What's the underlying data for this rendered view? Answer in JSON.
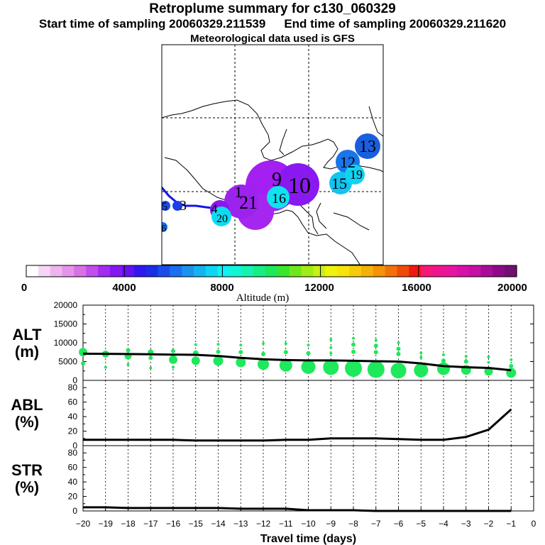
{
  "header": {
    "title": "Retroplume summary for c130_060329",
    "start_label": "Start time of sampling 20060329.211539",
    "end_label": "End time of sampling 20060329.211620",
    "met_label": "Meteorological data used is GFS"
  },
  "colorbar": {
    "title": "Altitude (m)",
    "ticks": [
      "0",
      "4000",
      "8000",
      "12000",
      "16000",
      "20000"
    ],
    "colors": [
      "#ffffff",
      "#f6d6f6",
      "#eeb4f0",
      "#e494ea",
      "#d870e6",
      "#c24cec",
      "#a22cf0",
      "#8418f2",
      "#6412f0",
      "#3018f0",
      "#1a2ee8",
      "#1a4cec",
      "#1a6ef0",
      "#1a92f0",
      "#14b4f0",
      "#0ed6f2",
      "#0ef2f2",
      "#12f4d8",
      "#16f2b0",
      "#16ee86",
      "#1ee85c",
      "#3ae62c",
      "#6ee81c",
      "#a0ec16",
      "#c8f012",
      "#eef20c",
      "#f6e40a",
      "#f6cc0a",
      "#f6b00a",
      "#f49208",
      "#f27208",
      "#f04a0a",
      "#f01810",
      "#f8187a",
      "#f01490",
      "#e814a0",
      "#d810a6",
      "#c410a4",
      "#a80c98",
      "#8c0a8a",
      "#701070"
    ]
  },
  "map": {
    "trajectory_color": "#1414e8",
    "labels": [
      {
        "text": "13",
        "color": "#1a5ee0"
      },
      {
        "text": "12",
        "color": "#1a76e8"
      },
      {
        "text": "19",
        "color": "#12d4f2"
      },
      {
        "text": "15",
        "color": "#12c4f0"
      },
      {
        "text": "10",
        "color": "#8a14f0"
      },
      {
        "text": "9",
        "color": "#9a1ef0"
      },
      {
        "text": "16",
        "color": "#10e2f2"
      },
      {
        "text": "21",
        "color": "#9e22ee"
      },
      {
        "text": "1",
        "color": "#a226ee"
      },
      {
        "text": "4",
        "color": "#8e18f0"
      },
      {
        "text": "20",
        "color": "#10daf2"
      },
      {
        "text": "3",
        "color": "#1a40ea"
      },
      {
        "text": "5",
        "color": "#1a4cea"
      },
      {
        "text": "6",
        "color": "#1a6ee8"
      }
    ]
  },
  "chart_data": [
    {
      "type": "line",
      "panel": "ALT",
      "ylabel": "ALT (m)",
      "ylabel_line1": "ALT",
      "ylabel_line2": "(m)",
      "ylim": [
        0,
        20000
      ],
      "yticks": [
        "0",
        "5000",
        "10000",
        "15000",
        "20000"
      ],
      "xlim": [
        -20,
        0
      ],
      "x": [
        -20,
        -19,
        -18,
        -17,
        -16,
        -15,
        -14,
        -13,
        -12,
        -11,
        -10,
        -9,
        -8,
        -7,
        -6,
        -5,
        -4,
        -3,
        -2,
        -1
      ],
      "series": [
        {
          "name": "mean altitude",
          "values": [
            7100,
            7050,
            7000,
            6950,
            6850,
            6800,
            6500,
            6000,
            5600,
            5400,
            5300,
            5300,
            5200,
            5100,
            5000,
            4500,
            3800,
            3500,
            3300,
            2700
          ]
        }
      ],
      "scatter_color": "#1ee85c",
      "scatter": [
        [
          -20,
          7500,
          6
        ],
        [
          -20,
          4500,
          3
        ],
        [
          -19,
          7000,
          5
        ],
        [
          -19,
          3500,
          2
        ],
        [
          -18,
          8000,
          3
        ],
        [
          -18,
          6500,
          5
        ],
        [
          -18,
          4200,
          2
        ],
        [
          -17,
          7500,
          4
        ],
        [
          -17,
          6000,
          3
        ],
        [
          -17,
          3300,
          2
        ],
        [
          -16,
          7800,
          3
        ],
        [
          -16,
          5500,
          6
        ],
        [
          -16,
          3500,
          2
        ],
        [
          -15,
          9500,
          2
        ],
        [
          -15,
          7200,
          4
        ],
        [
          -15,
          5200,
          6
        ],
        [
          -14,
          9600,
          2
        ],
        [
          -14,
          7600,
          3
        ],
        [
          -14,
          5200,
          7
        ],
        [
          -13,
          9400,
          2
        ],
        [
          -13,
          7500,
          3
        ],
        [
          -13,
          4800,
          7
        ],
        [
          -12,
          9800,
          2
        ],
        [
          -12,
          7000,
          3
        ],
        [
          -12,
          4300,
          8
        ],
        [
          -11,
          9800,
          2
        ],
        [
          -11,
          7500,
          3
        ],
        [
          -11,
          4000,
          9
        ],
        [
          -10,
          9400,
          2
        ],
        [
          -10,
          7200,
          3
        ],
        [
          -10,
          3600,
          10
        ],
        [
          -9,
          10800,
          2
        ],
        [
          -9,
          8700,
          2
        ],
        [
          -9,
          7200,
          2
        ],
        [
          -9,
          3500,
          11
        ],
        [
          -8,
          11200,
          2
        ],
        [
          -8,
          9500,
          3
        ],
        [
          -8,
          7600,
          3
        ],
        [
          -8,
          3200,
          12
        ],
        [
          -7,
          10700,
          2
        ],
        [
          -7,
          9200,
          3
        ],
        [
          -7,
          7500,
          3
        ],
        [
          -7,
          2900,
          12
        ],
        [
          -6,
          10000,
          2
        ],
        [
          -6,
          8400,
          3
        ],
        [
          -6,
          7000,
          3
        ],
        [
          -6,
          2600,
          11
        ],
        [
          -5,
          7300,
          2
        ],
        [
          -5,
          6100,
          2
        ],
        [
          -5,
          2700,
          10
        ],
        [
          -4,
          6800,
          2
        ],
        [
          -4,
          5200,
          3
        ],
        [
          -4,
          3100,
          9
        ],
        [
          -3,
          6400,
          2
        ],
        [
          -3,
          5000,
          3
        ],
        [
          -3,
          2800,
          7
        ],
        [
          -2,
          6200,
          2
        ],
        [
          -2,
          4800,
          2
        ],
        [
          -2,
          2400,
          6
        ],
        [
          -1,
          5500,
          2
        ],
        [
          -1,
          3800,
          3
        ],
        [
          -1,
          2000,
          7
        ]
      ]
    },
    {
      "type": "line",
      "panel": "ABL",
      "ylabel": "ABL (%)",
      "ylabel_line1": "ABL",
      "ylabel_line2": "(%)",
      "ylim": [
        0,
        90
      ],
      "yticks": [
        "0",
        "20",
        "40",
        "60",
        "80"
      ],
      "xlim": [
        -20,
        0
      ],
      "x": [
        -20,
        -19,
        -18,
        -17,
        -16,
        -15,
        -14,
        -13,
        -12,
        -11,
        -10,
        -9,
        -8,
        -7,
        -6,
        -5,
        -4,
        -3,
        -2,
        -1
      ],
      "series": [
        {
          "name": "ABL fraction",
          "values": [
            8,
            8,
            8,
            8,
            8,
            7,
            7,
            7,
            7,
            8,
            8,
            10,
            10,
            10,
            9,
            8,
            8,
            12,
            22,
            50
          ]
        }
      ]
    },
    {
      "type": "line",
      "panel": "STR",
      "ylabel": "STR (%)",
      "ylabel_line1": "STR",
      "ylabel_line2": "(%)",
      "ylim": [
        0,
        90
      ],
      "yticks": [
        "0",
        "20",
        "40",
        "60",
        "80"
      ],
      "xlim": [
        -20,
        0
      ],
      "xlabel": "Travel time (days)",
      "xticks": [
        "−20",
        "−19",
        "−18",
        "−17",
        "−16",
        "−15",
        "−14",
        "−13",
        "−12",
        "−11",
        "−10",
        "−9",
        "−8",
        "−7",
        "−6",
        "−5",
        "−4",
        "−3",
        "−2",
        "−1",
        "0"
      ],
      "x": [
        -20,
        -19,
        -18,
        -17,
        -16,
        -15,
        -14,
        -13,
        -12,
        -11,
        -10,
        -9,
        -8,
        -7,
        -6,
        -5,
        -4,
        -3,
        -2,
        -1
      ],
      "series": [
        {
          "name": "STR fraction",
          "values": [
            5,
            5,
            4,
            4,
            4,
            4,
            4,
            3,
            3,
            3,
            1,
            1,
            1,
            0,
            0,
            0,
            0,
            0,
            0,
            0
          ]
        }
      ]
    }
  ]
}
